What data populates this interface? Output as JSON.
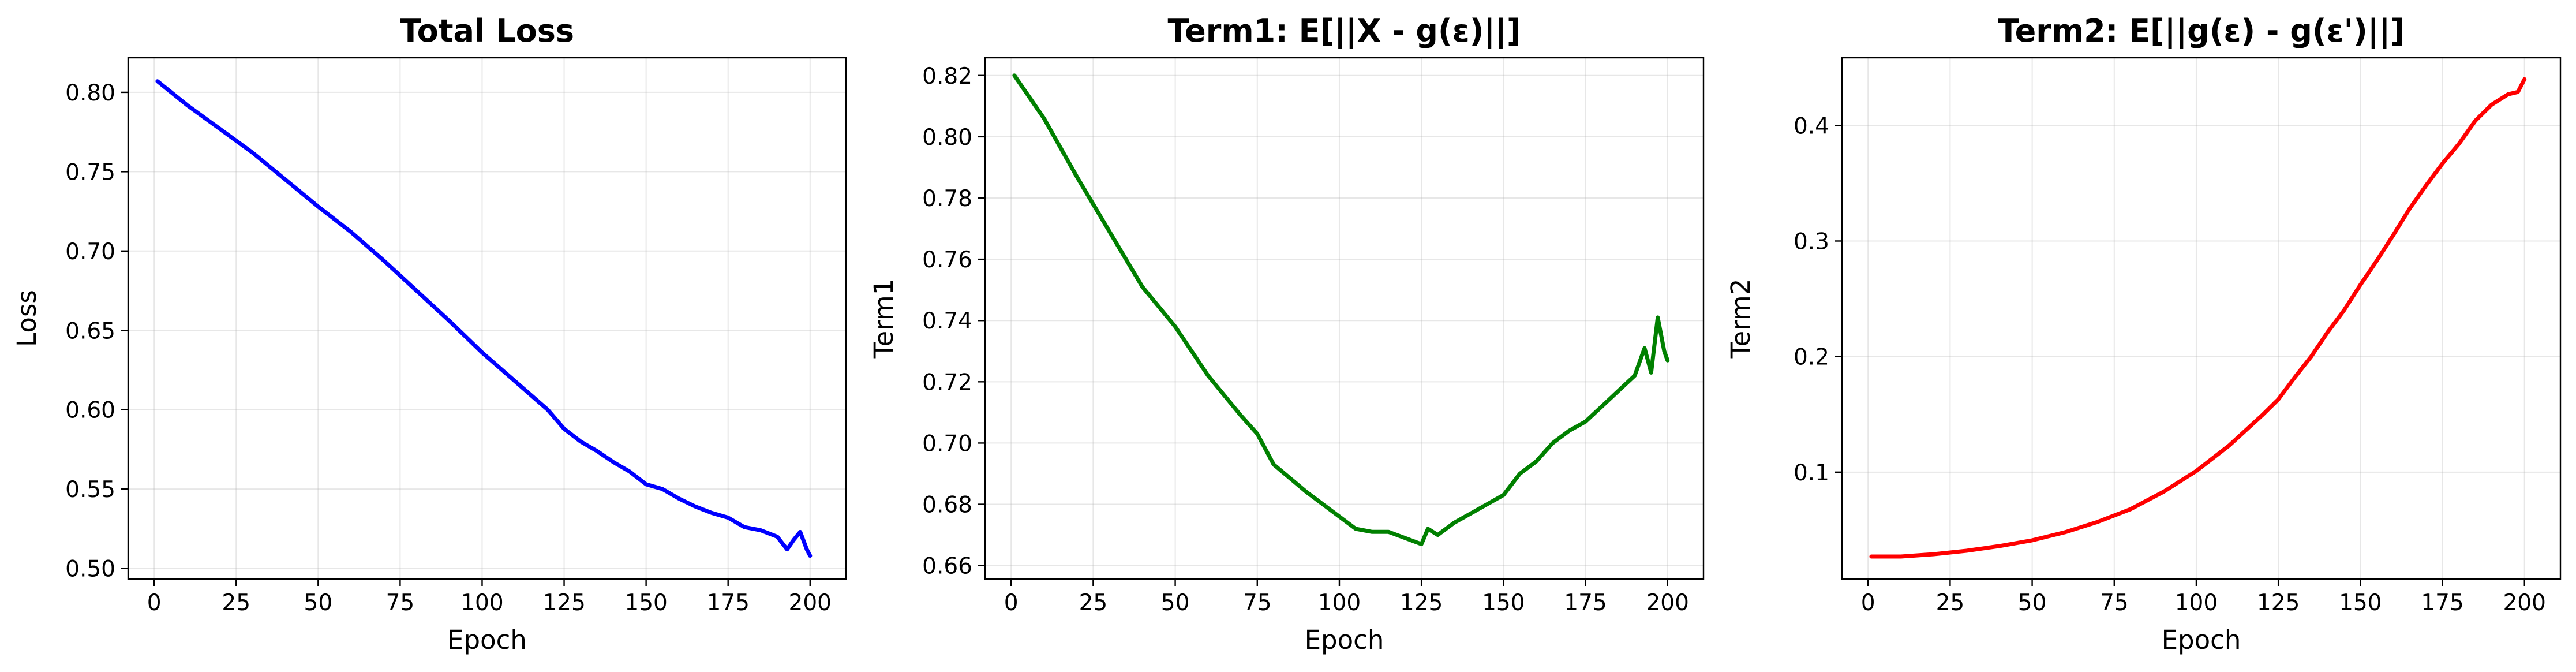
{
  "chart_data": [
    {
      "type": "line",
      "title": "Total Loss",
      "xlabel": "Epoch",
      "ylabel": "Loss",
      "xlim": [
        -7.95,
        210.95
      ],
      "ylim": [
        0.4933,
        0.8218
      ],
      "xticks": [
        0,
        25,
        50,
        75,
        100,
        125,
        150,
        175,
        200
      ],
      "yticks": [
        0.5,
        0.55,
        0.6,
        0.65,
        0.7,
        0.75,
        0.8
      ],
      "ytick_labels": [
        "0.50",
        "0.55",
        "0.60",
        "0.65",
        "0.70",
        "0.75",
        "0.80"
      ],
      "grid": true,
      "series": [
        {
          "color": "#0000ff",
          "x": [
            1,
            10,
            20,
            30,
            40,
            50,
            60,
            70,
            80,
            90,
            100,
            110,
            120,
            125,
            130,
            135,
            140,
            145,
            150,
            155,
            160,
            165,
            170,
            175,
            180,
            185,
            190,
            193,
            195,
            197,
            199,
            200
          ],
          "y": [
            0.807,
            0.792,
            0.777,
            0.762,
            0.745,
            0.728,
            0.712,
            0.694,
            0.675,
            0.656,
            0.636,
            0.618,
            0.6,
            0.588,
            0.58,
            0.574,
            0.567,
            0.561,
            0.553,
            0.55,
            0.544,
            0.539,
            0.535,
            0.532,
            0.526,
            0.524,
            0.52,
            0.512,
            0.518,
            0.523,
            0.512,
            0.508
          ]
        }
      ]
    },
    {
      "type": "line",
      "title": "Term1: E[||X - g(ε)||]",
      "xlabel": "Epoch",
      "ylabel": "Term1",
      "xlim": [
        -7.95,
        210.95
      ],
      "ylim": [
        0.6556,
        0.8258
      ],
      "xticks": [
        0,
        25,
        50,
        75,
        100,
        125,
        150,
        175,
        200
      ],
      "yticks": [
        0.66,
        0.68,
        0.7,
        0.72,
        0.74,
        0.76,
        0.78,
        0.8,
        0.82
      ],
      "ytick_labels": [
        "0.66",
        "0.68",
        "0.70",
        "0.72",
        "0.74",
        "0.76",
        "0.78",
        "0.80",
        "0.82"
      ],
      "grid": true,
      "series": [
        {
          "color": "#008000",
          "x": [
            1,
            10,
            20,
            30,
            40,
            50,
            60,
            70,
            75,
            80,
            90,
            95,
            100,
            105,
            110,
            115,
            120,
            125,
            127,
            130,
            135,
            140,
            145,
            150,
            155,
            160,
            165,
            170,
            175,
            180,
            185,
            190,
            193,
            195,
            197,
            199,
            200
          ],
          "y": [
            0.82,
            0.806,
            0.787,
            0.769,
            0.751,
            0.738,
            0.722,
            0.709,
            0.703,
            0.693,
            0.684,
            0.68,
            0.676,
            0.672,
            0.671,
            0.671,
            0.669,
            0.667,
            0.672,
            0.67,
            0.674,
            0.677,
            0.68,
            0.683,
            0.69,
            0.694,
            0.7,
            0.704,
            0.707,
            0.712,
            0.717,
            0.722,
            0.731,
            0.723,
            0.741,
            0.73,
            0.727
          ]
        }
      ]
    },
    {
      "type": "line",
      "title": "Term2: E[||g(ε) - g(ε')||]",
      "xlabel": "Epoch",
      "ylabel": "Term2",
      "xlim": [
        -7.95,
        210.95
      ],
      "ylim": [
        0.0075,
        0.4586
      ],
      "xticks": [
        0,
        25,
        50,
        75,
        100,
        125,
        150,
        175,
        200
      ],
      "yticks": [
        0.1,
        0.2,
        0.3,
        0.4
      ],
      "ytick_labels": [
        "0.1",
        "0.2",
        "0.3",
        "0.4"
      ],
      "grid": true,
      "series": [
        {
          "color": "#ff0000",
          "x": [
            1,
            10,
            20,
            30,
            40,
            50,
            60,
            70,
            80,
            90,
            100,
            110,
            120,
            125,
            130,
            135,
            140,
            145,
            150,
            155,
            160,
            165,
            170,
            175,
            180,
            185,
            190,
            195,
            198,
            200
          ],
          "y": [
            0.027,
            0.027,
            0.029,
            0.032,
            0.036,
            0.041,
            0.048,
            0.057,
            0.068,
            0.083,
            0.101,
            0.123,
            0.149,
            0.163,
            0.182,
            0.2,
            0.221,
            0.24,
            0.262,
            0.283,
            0.305,
            0.328,
            0.348,
            0.367,
            0.384,
            0.404,
            0.418,
            0.427,
            0.429,
            0.44
          ]
        }
      ]
    }
  ]
}
